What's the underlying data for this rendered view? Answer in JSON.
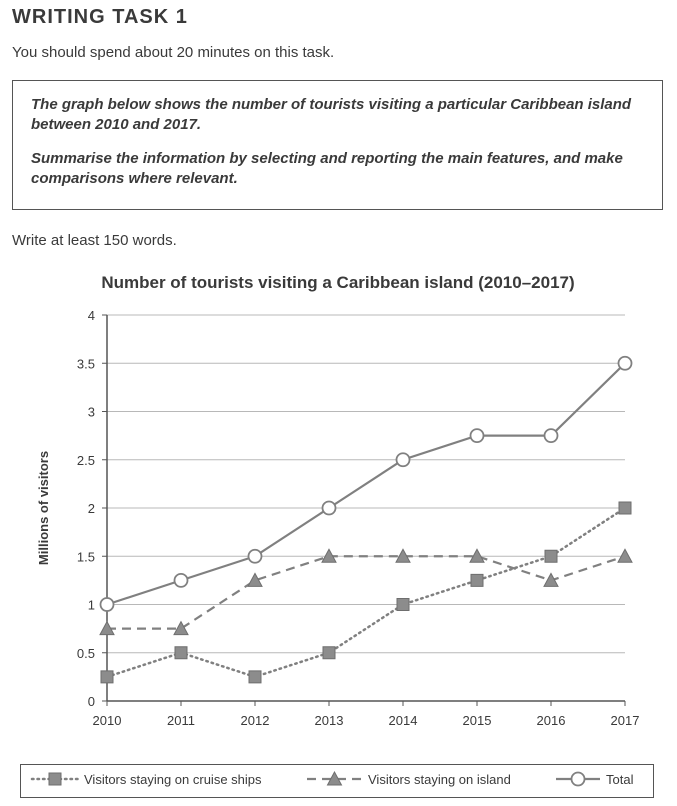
{
  "header": {
    "title": "WRITING TASK 1",
    "instruction": "You should spend about 20 minutes on this task."
  },
  "task_box": {
    "line1": "The graph below shows the number of tourists visiting a particular Caribbean island between 2010 and 2017.",
    "line2": "Summarise the information by selecting and reporting the main features, and make comparisons where relevant."
  },
  "word_count_note": "Write at least 150 words.",
  "colors": {
    "line": "#808080",
    "marker": "#8c8c8c",
    "grid": "#b8b8b8",
    "text": "#3a3a3a"
  },
  "chart_data": {
    "type": "line",
    "title": "Number of tourists visiting a Caribbean island (2010–2017)",
    "xlabel": "",
    "ylabel": "Millions of visitors",
    "x": [
      "2010",
      "2011",
      "2012",
      "2013",
      "2014",
      "2015",
      "2016",
      "2017"
    ],
    "ylim": [
      0,
      4
    ],
    "yticks": [
      "0",
      "0.5",
      "1",
      "1.5",
      "2",
      "2.5",
      "3",
      "3.5",
      "4"
    ],
    "grid": true,
    "legend": "bottom",
    "series": [
      {
        "name": "Visitors staying on cruise ships",
        "values": [
          0.25,
          0.5,
          0.25,
          0.5,
          1,
          1.25,
          1.5,
          2
        ],
        "line": "dotted",
        "marker": "square"
      },
      {
        "name": "Visitors staying on island",
        "values": [
          0.75,
          0.75,
          1.25,
          1.5,
          1.5,
          1.5,
          1.25,
          1.5
        ],
        "line": "dashed",
        "marker": "triangle"
      },
      {
        "name": "Total",
        "values": [
          1,
          1.25,
          1.5,
          2,
          2.5,
          2.75,
          2.75,
          3.5
        ],
        "line": "solid",
        "marker": "circle"
      }
    ]
  }
}
